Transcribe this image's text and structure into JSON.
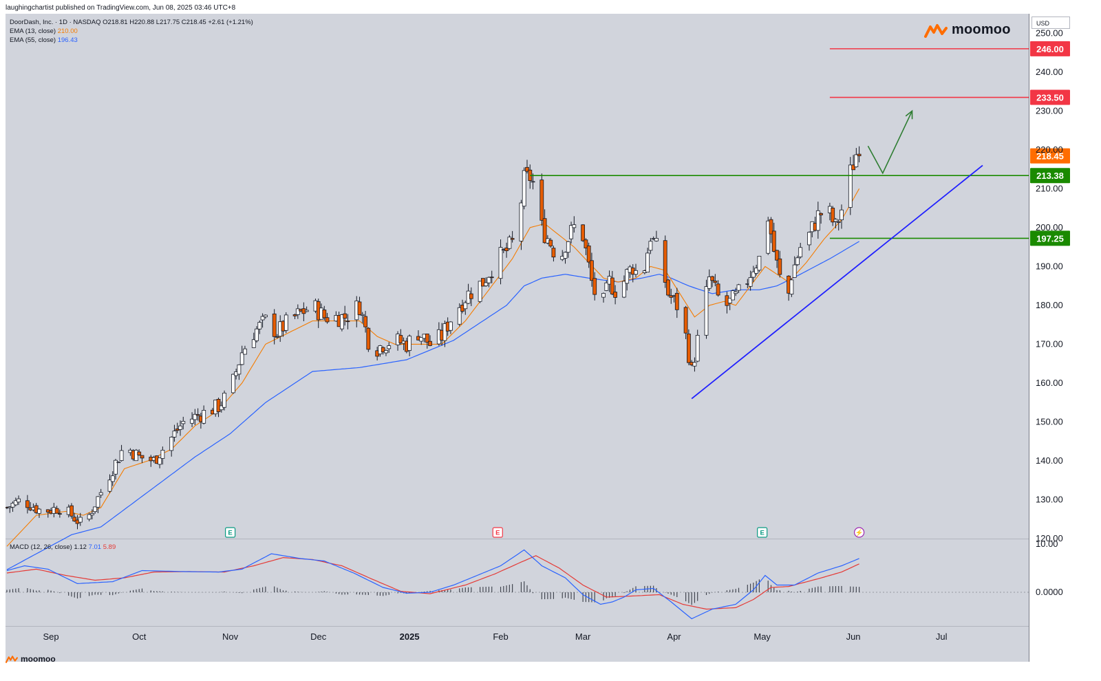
{
  "publisher_line": "laughingchartist published on TradingView.com, Jun 08, 2025 03:46 UTC+8",
  "brand": "moomoo",
  "footer_brand": "moomoo",
  "currency": "USD",
  "legend": {
    "symbol_line": "DoorDash, Inc. · 1D · NASDAQ  O218.81  H220.88  L217.75  C218.45  +2.61 (+1.21%)",
    "ema13_label": "EMA (13, close)",
    "ema13_value": "210.00",
    "ema55_label": "EMA (55, close)",
    "ema55_value": "196.43",
    "macd_label": "MACD (12, 26, close)",
    "macd_hist": "1.12",
    "macd_line": "7.01",
    "macd_signal": "5.89"
  },
  "colors": {
    "background": "#d1d4dc",
    "up_candle": "#ffffff",
    "down_candle": "#e65c00",
    "ema13": "#f57c00",
    "ema55": "#2962ff",
    "resistance": "#f23645",
    "support": "#089981",
    "trendline": "#1f1fff",
    "projection": "#2e7d32",
    "last_price": "#ff6d00"
  },
  "chart_data": {
    "type": "candlestick",
    "title": "DoorDash, Inc. · 1D · NASDAQ",
    "y_axis": {
      "range": [
        120,
        255
      ],
      "ticks": [
        "250.00",
        "240.00",
        "230.00",
        "220.00",
        "210.00",
        "200.00",
        "190.00",
        "180.00",
        "170.00",
        "160.00",
        "150.00",
        "140.00",
        "130.00",
        "120.00"
      ]
    },
    "x_axis": {
      "labels": [
        {
          "label": "Sep",
          "day": 15
        },
        {
          "label": "Oct",
          "day": 45
        },
        {
          "label": "Nov",
          "day": 76
        },
        {
          "label": "Dec",
          "day": 106
        },
        {
          "label": "2025",
          "day": 137
        },
        {
          "label": "Feb",
          "day": 168
        },
        {
          "label": "Mar",
          "day": 196
        },
        {
          "label": "Apr",
          "day": 227
        },
        {
          "label": "May",
          "day": 257
        },
        {
          "label": "Jun",
          "day": 288
        },
        {
          "label": "Jul",
          "day": 318
        }
      ]
    },
    "price_anchors": [
      [
        0,
        128
      ],
      [
        5,
        130
      ],
      [
        12,
        127
      ],
      [
        18,
        128
      ],
      [
        22,
        126
      ],
      [
        25,
        124
      ],
      [
        28,
        126
      ],
      [
        32,
        132
      ],
      [
        36,
        138
      ],
      [
        40,
        144
      ],
      [
        45,
        141
      ],
      [
        50,
        140
      ],
      [
        56,
        146
      ],
      [
        60,
        150
      ],
      [
        66,
        152
      ],
      [
        72,
        154
      ],
      [
        76,
        158
      ],
      [
        80,
        168
      ],
      [
        84,
        173
      ],
      [
        88,
        176
      ],
      [
        92,
        173
      ],
      [
        96,
        176
      ],
      [
        100,
        178
      ],
      [
        104,
        180
      ],
      [
        108,
        177
      ],
      [
        115,
        177
      ],
      [
        120,
        180
      ],
      [
        124,
        168
      ],
      [
        128,
        170
      ],
      [
        132,
        171
      ],
      [
        136,
        170
      ],
      [
        140,
        173
      ],
      [
        144,
        170
      ],
      [
        148,
        172
      ],
      [
        152,
        178
      ],
      [
        157,
        183
      ],
      [
        162,
        186
      ],
      [
        166,
        191
      ],
      [
        170,
        194
      ],
      [
        173,
        197
      ],
      [
        176,
        212
      ],
      [
        178,
        213
      ],
      [
        180,
        210
      ],
      [
        182,
        200
      ],
      [
        185,
        196
      ],
      [
        188,
        191
      ],
      [
        190,
        196
      ],
      [
        193,
        200
      ],
      [
        196,
        198
      ],
      [
        199,
        186
      ],
      [
        202,
        178
      ],
      [
        205,
        186
      ],
      [
        208,
        183
      ],
      [
        211,
        188
      ],
      [
        213,
        190
      ],
      [
        216,
        186
      ],
      [
        219,
        198
      ],
      [
        222,
        193
      ],
      [
        225,
        183
      ],
      [
        228,
        180
      ],
      [
        231,
        172
      ],
      [
        233,
        163
      ],
      [
        236,
        175
      ],
      [
        239,
        187
      ],
      [
        242,
        182
      ],
      [
        245,
        180
      ],
      [
        248,
        182
      ],
      [
        251,
        185
      ],
      [
        254,
        190
      ],
      [
        257,
        193
      ],
      [
        259,
        203
      ],
      [
        261,
        194
      ],
      [
        263,
        187
      ],
      [
        265,
        178
      ],
      [
        267,
        188
      ],
      [
        270,
        195
      ],
      [
        273,
        198
      ],
      [
        276,
        203
      ],
      [
        279,
        205
      ],
      [
        282,
        200
      ],
      [
        285,
        207
      ],
      [
        287,
        214
      ],
      [
        289,
        219
      ],
      [
        290,
        218.45
      ]
    ],
    "ema13_anchors": [
      [
        0,
        118
      ],
      [
        10,
        126
      ],
      [
        20,
        127
      ],
      [
        26,
        126
      ],
      [
        32,
        128
      ],
      [
        40,
        138
      ],
      [
        48,
        140
      ],
      [
        56,
        143
      ],
      [
        64,
        149
      ],
      [
        72,
        153
      ],
      [
        80,
        160
      ],
      [
        88,
        170
      ],
      [
        96,
        173
      ],
      [
        104,
        176
      ],
      [
        112,
        176
      ],
      [
        120,
        176
      ],
      [
        126,
        172
      ],
      [
        132,
        170
      ],
      [
        140,
        170
      ],
      [
        148,
        170
      ],
      [
        156,
        176
      ],
      [
        164,
        184
      ],
      [
        172,
        192
      ],
      [
        178,
        200
      ],
      [
        183,
        201
      ],
      [
        188,
        198
      ],
      [
        193,
        195
      ],
      [
        198,
        191
      ],
      [
        203,
        187
      ],
      [
        208,
        186
      ],
      [
        214,
        187
      ],
      [
        219,
        190
      ],
      [
        224,
        189
      ],
      [
        229,
        183
      ],
      [
        234,
        177
      ],
      [
        239,
        180
      ],
      [
        244,
        181
      ],
      [
        248,
        180
      ],
      [
        254,
        186
      ],
      [
        258,
        190
      ],
      [
        262,
        188
      ],
      [
        266,
        186
      ],
      [
        272,
        191
      ],
      [
        278,
        197
      ],
      [
        284,
        202
      ],
      [
        290,
        210
      ]
    ],
    "ema55_anchors": [
      [
        0,
        112
      ],
      [
        22,
        121
      ],
      [
        32,
        123
      ],
      [
        48,
        132
      ],
      [
        64,
        141
      ],
      [
        76,
        147
      ],
      [
        88,
        155
      ],
      [
        104,
        163
      ],
      [
        120,
        164
      ],
      [
        136,
        166
      ],
      [
        152,
        171
      ],
      [
        162,
        176
      ],
      [
        170,
        180
      ],
      [
        176,
        185
      ],
      [
        182,
        187
      ],
      [
        190,
        188
      ],
      [
        198,
        187
      ],
      [
        208,
        186
      ],
      [
        216,
        187
      ],
      [
        222,
        188
      ],
      [
        226,
        187
      ],
      [
        232,
        185
      ],
      [
        240,
        183
      ],
      [
        248,
        184
      ],
      [
        256,
        184
      ],
      [
        262,
        185
      ],
      [
        270,
        188
      ],
      [
        280,
        192
      ],
      [
        290,
        196.43
      ]
    ],
    "support_resistance": [
      {
        "label": "246.00",
        "price": 246.0,
        "kind": "resistance",
        "from_day": 280
      },
      {
        "label": "233.50",
        "price": 233.5,
        "kind": "resistance",
        "from_day": 280
      },
      {
        "label": "213.38",
        "price": 213.38,
        "kind": "support",
        "from_day": 178
      },
      {
        "label": "197.25",
        "price": 197.25,
        "kind": "support",
        "from_day": 280
      }
    ],
    "last_price": {
      "label": "218.45",
      "price": 218.45
    },
    "trendline": {
      "from": [
        233,
        156
      ],
      "to": [
        332,
        216
      ]
    },
    "projection_path": [
      [
        293,
        221
      ],
      [
        298,
        214
      ],
      [
        308,
        230
      ]
    ],
    "event_markers": [
      {
        "day": 76,
        "glyph": "E",
        "kind": "earnings"
      },
      {
        "day": 167,
        "glyph": "E",
        "kind": "earnings-negative"
      },
      {
        "day": 257,
        "glyph": "E",
        "kind": "earnings"
      },
      {
        "day": 290,
        "glyph": "⚡",
        "kind": "event"
      }
    ],
    "macd": {
      "y_range": [
        -7,
        11
      ],
      "ticks": [
        "10.00",
        "0.0000"
      ],
      "macd_anchors": [
        [
          0,
          4.5
        ],
        [
          6,
          5.5
        ],
        [
          14,
          4.8
        ],
        [
          24,
          1.8
        ],
        [
          36,
          2.2
        ],
        [
          46,
          4.5
        ],
        [
          60,
          4.3
        ],
        [
          72,
          4.2
        ],
        [
          80,
          4.8
        ],
        [
          90,
          8.0
        ],
        [
          100,
          7.0
        ],
        [
          108,
          6.5
        ],
        [
          118,
          4.0
        ],
        [
          128,
          1.0
        ],
        [
          136,
          -0.2
        ],
        [
          144,
          0.0
        ],
        [
          152,
          1.5
        ],
        [
          160,
          3.5
        ],
        [
          168,
          5.5
        ],
        [
          176,
          8.8
        ],
        [
          182,
          5.5
        ],
        [
          190,
          3.0
        ],
        [
          196,
          -0.5
        ],
        [
          202,
          -2.5
        ],
        [
          206,
          -2.0
        ],
        [
          210,
          -1.0
        ],
        [
          214,
          0.5
        ],
        [
          220,
          0.8
        ],
        [
          226,
          -2.0
        ],
        [
          233,
          -5.5
        ],
        [
          240,
          -3.5
        ],
        [
          248,
          -2.5
        ],
        [
          254,
          0.5
        ],
        [
          258,
          3.5
        ],
        [
          262,
          1.5
        ],
        [
          268,
          1.5
        ],
        [
          276,
          4.0
        ],
        [
          284,
          5.5
        ],
        [
          290,
          7.01
        ]
      ],
      "signal_anchors": [
        [
          0,
          4.0
        ],
        [
          10,
          4.8
        ],
        [
          20,
          3.5
        ],
        [
          30,
          2.5
        ],
        [
          40,
          3.0
        ],
        [
          50,
          4.2
        ],
        [
          62,
          4.3
        ],
        [
          74,
          4.2
        ],
        [
          84,
          5.5
        ],
        [
          94,
          7.2
        ],
        [
          104,
          6.8
        ],
        [
          114,
          5.5
        ],
        [
          124,
          2.8
        ],
        [
          134,
          0.2
        ],
        [
          144,
          -0.3
        ],
        [
          156,
          1.5
        ],
        [
          166,
          3.8
        ],
        [
          174,
          6.0
        ],
        [
          180,
          7.6
        ],
        [
          188,
          5.0
        ],
        [
          196,
          1.5
        ],
        [
          204,
          -1.0
        ],
        [
          212,
          -0.8
        ],
        [
          222,
          -0.5
        ],
        [
          230,
          -2.5
        ],
        [
          238,
          -3.5
        ],
        [
          248,
          -3.2
        ],
        [
          254,
          -1.5
        ],
        [
          260,
          1.0
        ],
        [
          266,
          1.2
        ],
        [
          276,
          2.8
        ],
        [
          284,
          4.2
        ],
        [
          290,
          5.89
        ]
      ]
    }
  }
}
